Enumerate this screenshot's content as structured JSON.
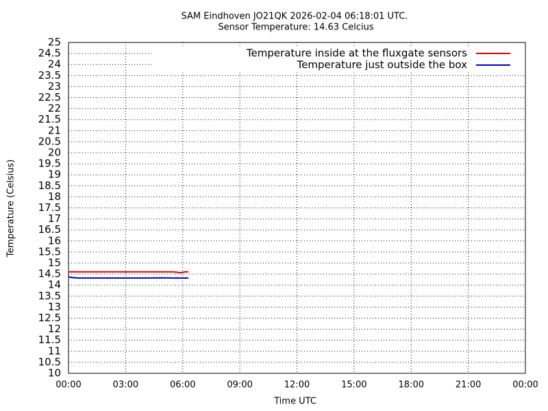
{
  "chart_data": {
    "type": "line",
    "title": "SAM Eindhoven JO21QK 2026-02-04 06:18:01 UTC.",
    "subtitle": "Sensor Temperature: 14.63 Celcius",
    "xlabel": "Time UTC",
    "ylabel": "Temperature (Celsius)",
    "x": [
      0,
      0.2,
      0.5,
      1,
      2,
      3,
      4,
      5,
      5.5,
      5.9,
      6.1,
      6.3
    ],
    "series": [
      {
        "name": "Temperature inside at the fluxgate sensors",
        "color": "#e00000",
        "values": [
          14.6,
          14.6,
          14.6,
          14.6,
          14.6,
          14.6,
          14.6,
          14.6,
          14.6,
          14.56,
          14.6,
          14.6
        ]
      },
      {
        "name": "Temperature just outside the box",
        "color": "#0000cc",
        "values": [
          14.38,
          14.34,
          14.32,
          14.32,
          14.32,
          14.32,
          14.32,
          14.33,
          14.32,
          14.32,
          14.32,
          14.32
        ]
      }
    ],
    "xlim": [
      0,
      24
    ],
    "xticks": [
      {
        "value": 0,
        "label": "00:00"
      },
      {
        "value": 3,
        "label": "03:00"
      },
      {
        "value": 6,
        "label": "06:00"
      },
      {
        "value": 9,
        "label": "09:00"
      },
      {
        "value": 12,
        "label": "12:00"
      },
      {
        "value": 15,
        "label": "15:00"
      },
      {
        "value": 18,
        "label": "18:00"
      },
      {
        "value": 21,
        "label": "21:00"
      },
      {
        "value": 24,
        "label": "00:00"
      }
    ],
    "ylim": [
      10,
      25
    ],
    "yticks": [
      10,
      10.5,
      11,
      11.5,
      12,
      12.5,
      13,
      13.5,
      14,
      14.5,
      15,
      15.5,
      16,
      16.5,
      17,
      17.5,
      18,
      18.5,
      19,
      19.5,
      20,
      20.5,
      21,
      21.5,
      22,
      22.5,
      23,
      23.5,
      24,
      24.5,
      25
    ],
    "grid": true,
    "legend": "top-right"
  }
}
